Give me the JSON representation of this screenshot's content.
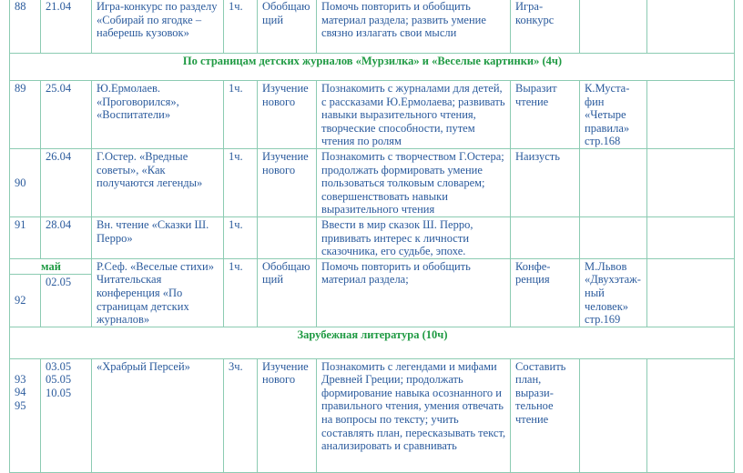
{
  "rows": [
    {
      "num": "88",
      "date": "21.04",
      "topic": "Игра-конкурс по разделу «Собирай по ягодке – наберешь кузовок»",
      "hours": "1ч.",
      "type": "Обобщаю щий",
      "goals": "Помочь повторить и обобщить материал раздела; развить умение связно излагать свои мысли",
      "form": "Игра-конкурс",
      "extra": "",
      "note": ""
    },
    {
      "section": "По страницам детских журналов «Мурзилка» и «Веселые картинки» (4ч)"
    },
    {
      "num": "89",
      "date": "25.04",
      "topic": "Ю.Ермолаев. «Проговорился», «Воспитатели»",
      "hours": "1ч.",
      "type": "Изучение нового",
      "goals": "Познакомить с журналами для детей, с рассказами Ю.Ермолаева; развивать навыки выразительного чтения, творческие способности, путем чтения по ролям",
      "form": "Выразит чтение",
      "extra": "К.Муста-фин «Четыре правила» стр.168",
      "note": ""
    },
    {
      "num": "90",
      "date": "26.04",
      "topic": "Г.Остер. «Вредные советы», «Как получаются легенды»",
      "hours": "1ч.",
      "type": "Изучение нового",
      "goals": "Познакомить с творчеством Г.Остера; продолжать формировать умение пользоваться толковым словарем; совершенствовать навыки выразительного чтения",
      "form": "Наизусть",
      "extra": "",
      "note": ""
    },
    {
      "num": "91",
      "date": "28.04",
      "topic": "Вн. чтение «Сказки Ш. Перро»",
      "hours": "1ч.",
      "type": "",
      "goals": "Ввести в мир сказок Ш. Перро, прививать интерес к личности сказочника, его судьбе, эпохе.",
      "form": "",
      "extra": "",
      "note": ""
    },
    {
      "month": "май",
      "num": "92",
      "date": "02.05",
      "topic": "Р.Сеф. «Веселые стихи» Читательская конференция «По страницам детских журналов»",
      "hours": "1ч.",
      "type": "Обобщаю щий",
      "goals": "Помочь повторить и обобщить материал раздела;",
      "form": "Конфе-ренция",
      "extra": "М.Львов «Двухэтаж-ный человек» стр.169",
      "note": ""
    },
    {
      "section": "Зарубежная литература (10ч)"
    },
    {
      "num": "93\n94\n95",
      "date": "03.05\n05.05\n10.05",
      "topic": "«Храбрый Персей»",
      "hours": "3ч.",
      "type": "Изучение нового",
      "goals": "Познакомить с легендами и мифами Древней Греции; продолжать формирование навыка осознанного и правильного чтения, умения отвечать на вопросы по тексту; учить составлять план, пересказывать текст, анализировать и сравнивать",
      "form": "Составить план, вырази-тельное чтение",
      "extra": "",
      "note": ""
    }
  ],
  "colors": {
    "text": "#2a5a9c",
    "section": "#1f9a43",
    "border": "#8ccbb2"
  }
}
